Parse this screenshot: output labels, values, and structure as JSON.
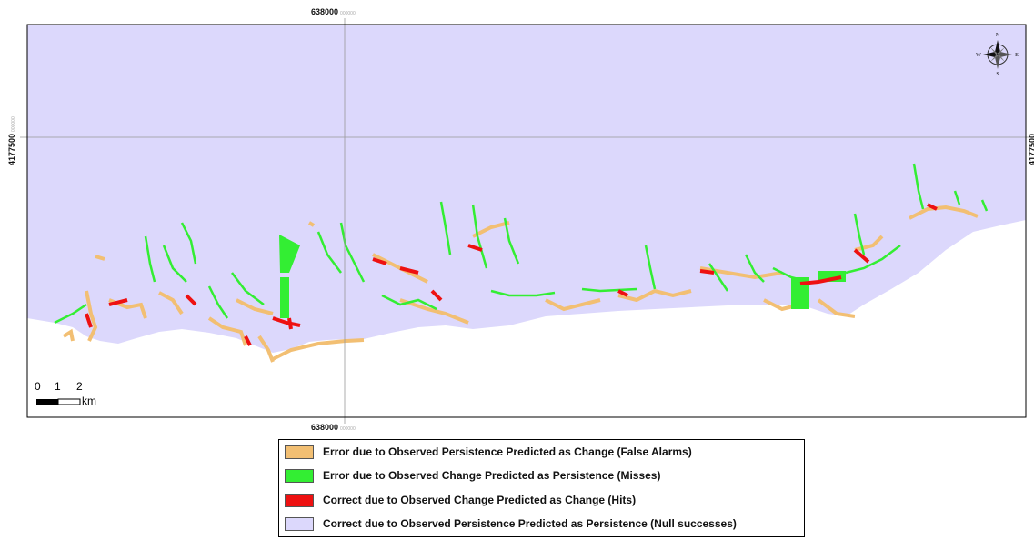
{
  "map": {
    "coords": {
      "top_x": "638000",
      "top_x_small": "000000",
      "bottom_x": "638000",
      "bottom_x_small": "000000",
      "left_y": "4177500",
      "left_y_small": "000000",
      "right_y": "4177500"
    },
    "scale_bar": {
      "ticks": [
        "0",
        "1",
        "2"
      ],
      "unit": "km"
    },
    "north_arrow": {
      "n": "N",
      "s": "S",
      "e": "E",
      "w": "W"
    }
  },
  "legend": {
    "items": [
      {
        "label": "Error due to Observed Persistence Predicted as Change (False Alarms)",
        "color": "#f2bf73"
      },
      {
        "label": "Error due to Observed Change Predicted as Persistence (Misses)",
        "color": "#33ee33"
      },
      {
        "label": "Correct due to Observed Change Predicted as Change (Hits)",
        "color": "#ee1111"
      },
      {
        "label": "Correct due to Observed Persistence Predicted as Persistence (Null successes)",
        "color": "#dcd8fc"
      }
    ]
  },
  "colors": {
    "background_lavender": "#dcd8fc",
    "false_alarms": "#f2bf73",
    "misses": "#33ee33",
    "hits": "#ee1111",
    "land_white": "#ffffff"
  }
}
